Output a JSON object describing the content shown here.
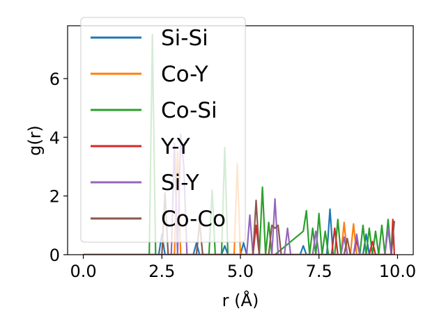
{
  "chart_data": {
    "type": "line",
    "title": "",
    "xlabel": "r (Å)",
    "ylabel": "g(r)",
    "xlim": [
      -0.5,
      10.5
    ],
    "ylim": [
      0,
      7.8
    ],
    "xticks": [
      0.0,
      2.5,
      5.0,
      7.5,
      10.0
    ],
    "xtick_labels": [
      "0.0",
      "2.5",
      "5.0",
      "7.5",
      "10.0"
    ],
    "yticks": [
      0,
      2,
      4,
      6
    ],
    "ytick_labels": [
      "0",
      "2",
      "4",
      "6"
    ],
    "grid": false,
    "legend_position": "top-left",
    "series": [
      {
        "name": "Si-Si",
        "color": "#1f77b4",
        "x": [
          0,
          2.4,
          2.5,
          2.6,
          3.5,
          3.6,
          3.7,
          4.4,
          4.5,
          4.6,
          5.0,
          5.1,
          5.2,
          6.9,
          7.0,
          7.1,
          7.75,
          7.85,
          7.95,
          8.6,
          8.7,
          8.8,
          8.9,
          9.0,
          9.1,
          9.9
        ],
        "y": [
          0,
          0,
          0.7,
          0,
          0,
          0.4,
          0,
          0,
          0.3,
          0,
          0,
          0.4,
          0,
          0,
          0.3,
          0,
          0,
          1.55,
          0,
          0,
          0.5,
          0,
          0,
          0.7,
          0,
          0
        ]
      },
      {
        "name": "Co-Y",
        "color": "#ff7f0e",
        "x": [
          0,
          2.9,
          3.0,
          3.1,
          4.8,
          4.9,
          5.0,
          8.2,
          8.3,
          8.4,
          8.5,
          8.6,
          8.7,
          9.9
        ],
        "y": [
          0,
          0,
          3.5,
          0,
          0,
          3.1,
          0,
          0,
          1.1,
          0,
          0,
          1.05,
          0,
          0
        ]
      },
      {
        "name": "Co-Si",
        "color": "#2ca02c",
        "x": [
          0,
          2.1,
          2.2,
          2.3,
          4.0,
          4.1,
          4.2,
          4.4,
          4.5,
          4.6,
          5.6,
          5.7,
          5.8,
          5.9,
          6.0,
          6.1,
          7.0,
          7.1,
          7.2,
          7.3,
          7.4,
          7.5,
          7.6,
          7.7,
          7.8,
          8.0,
          8.1,
          8.2,
          8.8,
          8.9,
          9.0,
          9.1,
          9.2,
          9.3,
          9.4,
          9.5,
          9.6,
          9.7,
          9.8,
          9.9
        ],
        "y": [
          0,
          0,
          7.5,
          0,
          0,
          2.2,
          0,
          0,
          3.65,
          0,
          0,
          2.3,
          0,
          1.1,
          0,
          0,
          0.8,
          1.5,
          0,
          0.9,
          0,
          1.4,
          0,
          0.8,
          0,
          0,
          1.2,
          0,
          0,
          1.0,
          0,
          0.9,
          0,
          0.8,
          0,
          1.0,
          0,
          1.2,
          0,
          0
        ]
      },
      {
        "name": "Y-Y",
        "color": "#d62728",
        "x": [
          0,
          5.4,
          5.5,
          5.6,
          7.9,
          8.0,
          8.1,
          8.6,
          8.7,
          8.8,
          9.1,
          9.2,
          9.3,
          9.8,
          9.85,
          9.9
        ],
        "y": [
          0,
          0,
          1.0,
          0,
          0,
          0.9,
          0,
          0,
          0.5,
          0,
          0,
          0.45,
          0,
          0,
          1.2,
          0
        ]
      },
      {
        "name": "Si-Y",
        "color": "#9467bd",
        "x": [
          0,
          2.8,
          2.9,
          3.0,
          3.1,
          3.2,
          3.3,
          5.2,
          5.3,
          5.4,
          6.0,
          6.1,
          6.2,
          6.4,
          6.5,
          6.6,
          7.3,
          7.4,
          7.5,
          8.2,
          8.3,
          8.4,
          8.6,
          8.7,
          8.8,
          9.6,
          9.7,
          9.8,
          9.9
        ],
        "y": [
          0,
          0,
          3.8,
          0,
          4.1,
          3.0,
          0,
          0,
          1.35,
          0,
          0,
          1.9,
          0,
          0,
          0.9,
          0,
          0,
          0.8,
          0,
          0,
          0.6,
          0,
          0,
          0.7,
          0,
          0,
          0.9,
          0,
          0
        ]
      },
      {
        "name": "Co-Co",
        "color": "#8c564b",
        "x": [
          0,
          2.5,
          2.6,
          2.7,
          3.6,
          3.7,
          3.8,
          5.4,
          5.5,
          5.6,
          5.9,
          6.0,
          6.1,
          6.2,
          6.3,
          8.3,
          8.4,
          8.5,
          9.8,
          9.9
        ],
        "y": [
          0,
          0,
          2.1,
          0,
          0,
          1.1,
          0,
          0,
          1.85,
          0,
          0,
          1.0,
          0.9,
          1.0,
          0,
          0,
          0.55,
          0,
          0,
          1.15
        ]
      }
    ]
  }
}
